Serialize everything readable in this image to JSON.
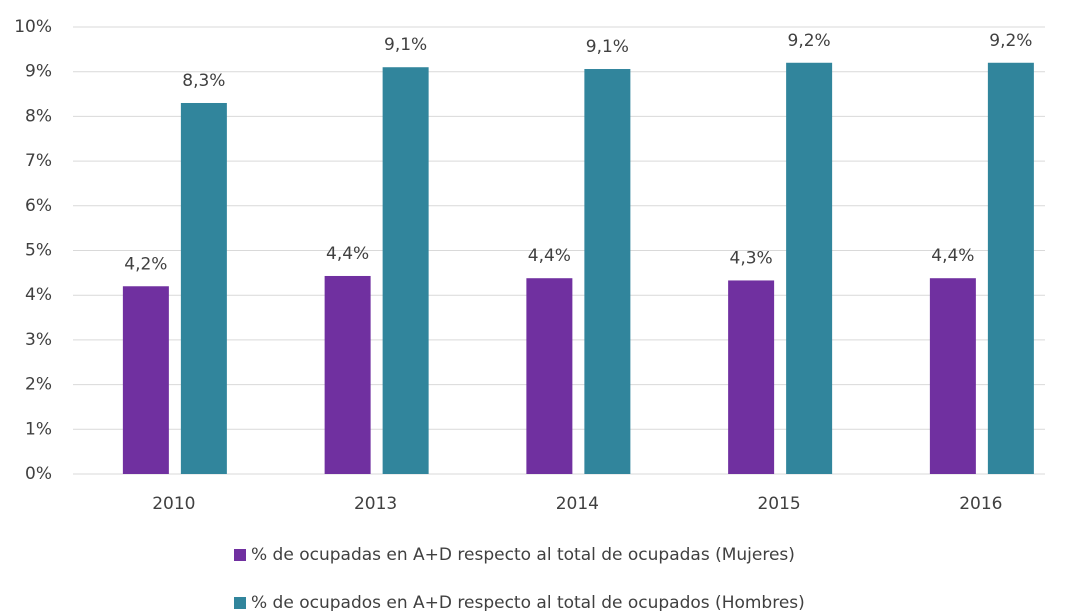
{
  "chart_data": {
    "type": "bar",
    "categories": [
      "2010",
      "2013",
      "2014",
      "2015",
      "2016"
    ],
    "series": [
      {
        "name": "% de ocupadas en A+D respecto al total de ocupadas (Mujeres)",
        "color": "#7030a0",
        "values": [
          4.2,
          4.43,
          4.38,
          4.33,
          4.38
        ],
        "value_labels": [
          "4,2%",
          "4,4%",
          "4,4%",
          "4,3%",
          "4,4%"
        ]
      },
      {
        "name": "% de ocupados en A+D respecto al total de ocupados (Hombres)",
        "color": "#31859c",
        "values": [
          8.3,
          9.1,
          9.06,
          9.2,
          9.2
        ],
        "value_labels": [
          "8,3%",
          "9,1%",
          "9,1%",
          "9,2%",
          "9,2%"
        ]
      }
    ],
    "ylim": [
      0,
      10
    ],
    "yticks": [
      {
        "value": 0,
        "label": "0%"
      },
      {
        "value": 1,
        "label": "1%"
      },
      {
        "value": 2,
        "label": "2%"
      },
      {
        "value": 3,
        "label": "3%"
      },
      {
        "value": 4,
        "label": "4%"
      },
      {
        "value": 5,
        "label": "5%"
      },
      {
        "value": 6,
        "label": "6%"
      },
      {
        "value": 7,
        "label": "7%"
      },
      {
        "value": 8,
        "label": "8%"
      },
      {
        "value": 9,
        "label": "9%"
      },
      {
        "value": 10,
        "label": "10%"
      }
    ],
    "grid": true
  }
}
